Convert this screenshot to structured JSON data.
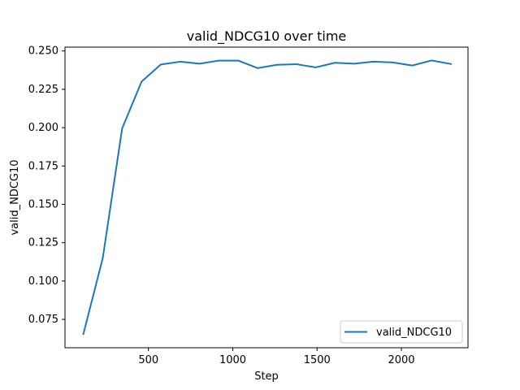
{
  "chart_data": {
    "type": "line",
    "title": "valid_NDCG10 over time",
    "xlabel": "Step",
    "ylabel": "valid_NDCG10",
    "xlim": [
      5,
      2395
    ],
    "ylim": [
      0.0565,
      0.2525
    ],
    "xticks": [
      500,
      1000,
      1500,
      2000
    ],
    "xtick_labels": [
      "500",
      "1000",
      "1500",
      "2000"
    ],
    "yticks": [
      0.075,
      0.1,
      0.125,
      0.15,
      0.175,
      0.2,
      0.225,
      0.25
    ],
    "ytick_labels": [
      "0.075",
      "0.100",
      "0.125",
      "0.150",
      "0.175",
      "0.200",
      "0.225",
      "0.250"
    ],
    "grid": false,
    "legend_position": "lower-right",
    "series": [
      {
        "name": "valid_NDCG10",
        "color": "#1f77b4",
        "x": [
          114,
          229,
          344,
          459,
          573,
          688,
          803,
          917,
          1032,
          1147,
          1262,
          1376,
          1491,
          1606,
          1720,
          1835,
          1950,
          2064,
          2179,
          2294
        ],
        "y": [
          0.0655,
          0.115,
          0.1995,
          0.23,
          0.2412,
          0.243,
          0.2417,
          0.2437,
          0.2437,
          0.2388,
          0.241,
          0.2414,
          0.2393,
          0.2423,
          0.2417,
          0.243,
          0.2425,
          0.2405,
          0.2438,
          0.2415
        ]
      }
    ]
  }
}
